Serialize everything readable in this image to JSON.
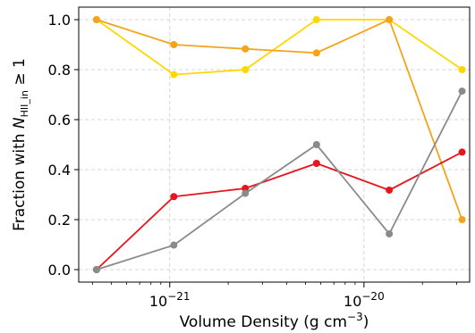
{
  "chart_data": {
    "type": "line",
    "xscale": "log",
    "xlabel": "Volume Density (g cm⁻³)",
    "xlabel_parts": {
      "main": "Volume Density (g cm",
      "sup": "−3",
      "tail": ")"
    },
    "ylabel_parts": {
      "pre": "Fraction with ",
      "italic": "N",
      "sub": "HII_in",
      "post": " ≥ 1"
    },
    "xlim": [
      3.4e-22,
      3.5e-20
    ],
    "ylim": [
      -0.05,
      1.05
    ],
    "grid": true,
    "x_ticks": [
      {
        "value": 1e-21,
        "base": "10",
        "exp": "−21"
      },
      {
        "value": 1e-20,
        "base": "10",
        "exp": "−20"
      }
    ],
    "y_ticks": [
      {
        "value": 0.0,
        "label": "0.0"
      },
      {
        "value": 0.2,
        "label": "0.2"
      },
      {
        "value": 0.4,
        "label": "0.4"
      },
      {
        "value": 0.6,
        "label": "0.6"
      },
      {
        "value": 0.8,
        "label": "0.8"
      },
      {
        "value": 1.0,
        "label": "1.0"
      }
    ],
    "x": [
      4.2e-22,
      1.05e-21,
      2.45e-21,
      5.7e-21,
      1.35e-20,
      3.2e-20
    ],
    "series": [
      {
        "color": "#ffd700",
        "values": [
          1.0,
          0.78,
          0.8,
          1.0,
          1.0,
          0.8
        ]
      },
      {
        "color": "#f5a31a",
        "values": [
          1.0,
          0.9,
          0.883,
          0.867,
          1.0,
          0.2
        ]
      },
      {
        "color": "#e8141e",
        "values": [
          0.0,
          0.292,
          0.325,
          0.425,
          0.318,
          0.47
        ]
      },
      {
        "color": "#8a8a8a",
        "values": [
          0.0,
          0.098,
          0.305,
          0.5,
          0.143,
          0.714
        ]
      }
    ]
  }
}
